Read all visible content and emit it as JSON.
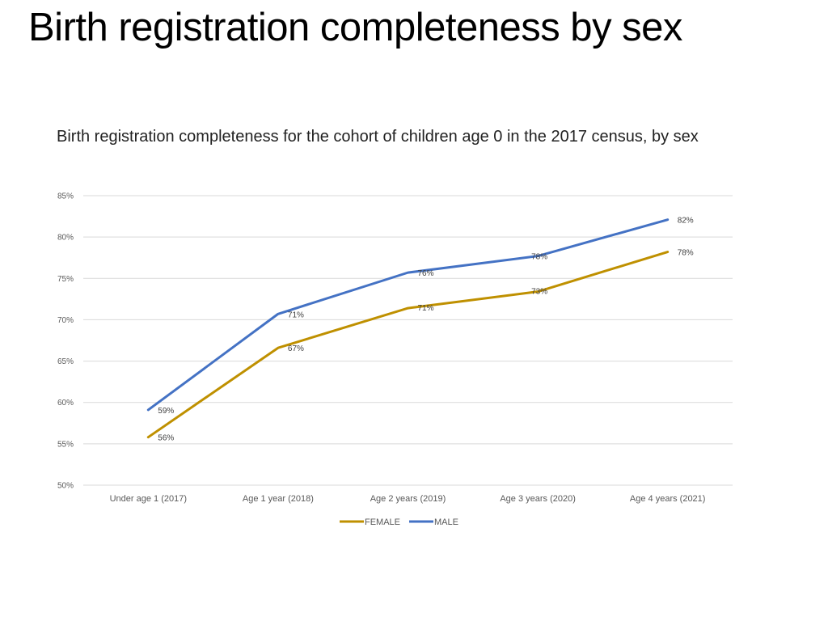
{
  "slide": {
    "title": "Birth registration completeness by sex"
  },
  "chart_data": {
    "type": "line",
    "title": "Birth registration completeness for the cohort of children age 0 in the 2017 census, by sex",
    "categories": [
      "Under age 1 (2017)",
      "Age 1 year  (2018)",
      "Age 2 years   (2019)",
      "Age 3 years  (2020)",
      "Age 4 years (2021)"
    ],
    "y_ticks": [
      "50%",
      "55%",
      "60%",
      "65%",
      "70%",
      "75%",
      "80%",
      "85%"
    ],
    "ylim": [
      50,
      85
    ],
    "y_step": 5,
    "grid": true,
    "legend_position": "bottom",
    "series": [
      {
        "name": "FEMALE",
        "color": "#BF9000",
        "values": [
          55.8,
          66.6,
          71.4,
          73.4,
          78.2
        ],
        "labels": [
          "56%",
          "67%",
          "71%",
          "73%",
          "78%"
        ]
      },
      {
        "name": "MALE",
        "color": "#4472C4",
        "values": [
          59.1,
          70.7,
          75.7,
          77.7,
          82.1
        ],
        "labels": [
          "59%",
          "71%",
          "76%",
          "78%",
          "82%"
        ]
      }
    ]
  }
}
